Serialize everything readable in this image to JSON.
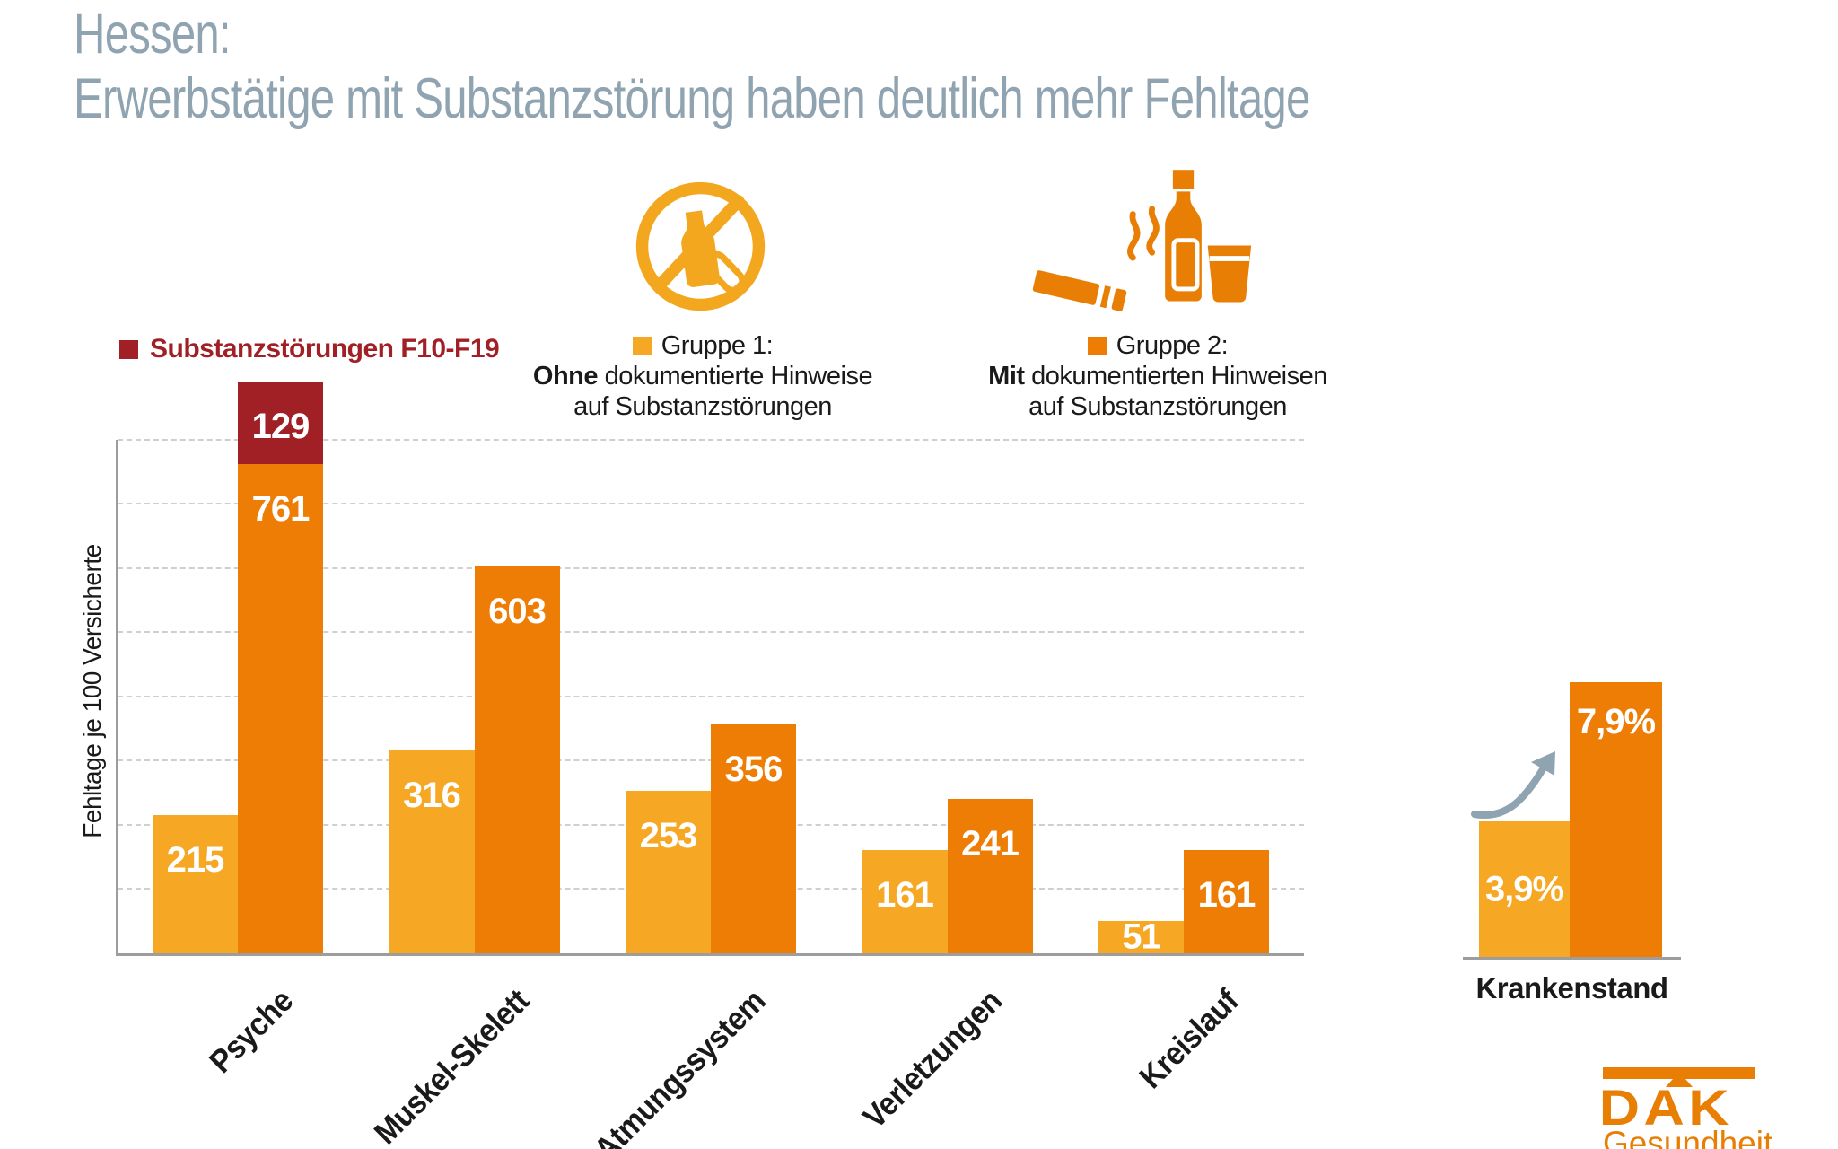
{
  "title": {
    "line1": "Hessen:",
    "line2": "Erwerbstätige mit Substanzstörung haben deutlich mehr Fehltage"
  },
  "ylabel": "Fehltage je 100 Versicherte",
  "legend": {
    "substance": {
      "label": "Substanzstörungen F10-F19",
      "color": "#a02025"
    },
    "group1": {
      "title": "Gruppe 1:",
      "line2_bold": "Ohne",
      "line2_rest": " dokumentierte Hinweise",
      "line3": "auf Substanzstörungen",
      "color": "#f6a723"
    },
    "group2": {
      "title": "Gruppe 2:",
      "line2_bold": "Mit",
      "line2_rest": " dokumentierten Hinweisen",
      "line3": "auf Substanzstörungen",
      "color": "#ee7d05"
    }
  },
  "icons": {
    "left": "no-alcohol-pills-icon",
    "right": "cigarette-bottle-glass-icon"
  },
  "chart_data": {
    "type": "bar",
    "title": "Hessen: Erwerbstätige mit Substanzstörung haben deutlich mehr Fehltage",
    "ylabel": "Fehltage je 100 Versicherte",
    "categories": [
      "Psyche",
      "Muskel-Skelett",
      "Atmungssystem",
      "Verletzungen",
      "Kreislauf"
    ],
    "series": [
      {
        "name": "Gruppe 1: Ohne dokumentierte Hinweise auf Substanzstörungen",
        "color": "#f6a723",
        "values": [
          215,
          316,
          253,
          161,
          51
        ]
      },
      {
        "name": "Gruppe 2: Mit dokumentierten Hinweisen auf Substanzstörungen",
        "color": "#ee7d05",
        "values": [
          761,
          603,
          356,
          241,
          161
        ]
      },
      {
        "name": "Substanzstörungen F10-F19",
        "color": "#a02025",
        "stacked_on": "Gruppe 2",
        "values": [
          129,
          0,
          0,
          0,
          0
        ]
      }
    ],
    "ylim": [
      0,
      890
    ],
    "grid": true,
    "gridline_step": 100,
    "legend_position": "top"
  },
  "mini_chart": {
    "type": "bar",
    "label": "Krankenstand",
    "bars": [
      {
        "group": "Gruppe 1",
        "display": "3,9%",
        "value": 3.9,
        "color": "#f6a723"
      },
      {
        "group": "Gruppe 2",
        "display": "7,9%",
        "value": 7.9,
        "color": "#ee7d05"
      }
    ]
  },
  "logo": {
    "line1": "DAK",
    "line2": "Gesundheit"
  },
  "colors": {
    "yellow": "#f6a723",
    "orange": "#ee7d05",
    "dark_red": "#a02025",
    "title_gray": "#8fa3b1",
    "arrow_gray": "#8fa3b1",
    "axis_gray": "#9d9d9d",
    "grid_gray": "#cfcfcf",
    "icon_yellow": "#f2a71e",
    "icon_orange": "#e87e04",
    "text_black": "#1a1a1a"
  }
}
